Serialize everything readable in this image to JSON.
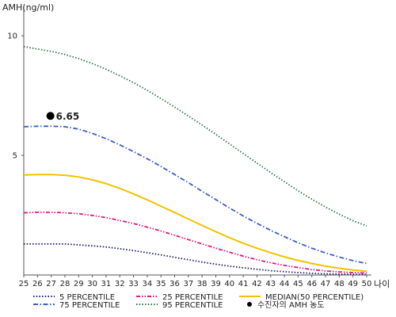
{
  "chart_data": {
    "type": "line",
    "ylabel": "AMH(ng/ml)",
    "xlabel": "나이",
    "x": [
      25,
      26,
      27,
      28,
      29,
      30,
      31,
      32,
      33,
      34,
      35,
      36,
      37,
      38,
      39,
      40,
      41,
      42,
      43,
      44,
      45,
      46,
      47,
      48,
      49,
      50
    ],
    "x_tick_labels": [
      "25",
      "26",
      "27",
      "28",
      "29",
      "30",
      "31",
      "32",
      "33",
      "34",
      "35",
      "36",
      "37",
      "38",
      "39",
      "40",
      "41",
      "42",
      "43",
      "44",
      "45",
      "46",
      "47",
      "48",
      "49",
      "50"
    ],
    "y_tick_labels": [
      "5",
      "10"
    ],
    "y_ticks": [
      5,
      10
    ],
    "xlim": [
      25,
      50
    ],
    "ylim": [
      0,
      11
    ],
    "grid": false,
    "legend_position": "bottom",
    "series": [
      {
        "name": "5 PERCENTILE",
        "color": "#1a1a6e",
        "style": "dotted",
        "values": [
          1.3,
          1.3,
          1.3,
          1.3,
          1.26,
          1.22,
          1.17,
          1.1,
          1.02,
          0.93,
          0.84,
          0.74,
          0.64,
          0.54,
          0.45,
          0.37,
          0.3,
          0.24,
          0.18,
          0.14,
          0.1,
          0.07,
          0.05,
          0.04,
          0.03,
          0.02
        ]
      },
      {
        "name": "75 PERCENTILE",
        "color": "#3b5fc0",
        "style": "dashdot",
        "values": [
          6.2,
          6.22,
          6.22,
          6.2,
          6.1,
          5.92,
          5.7,
          5.44,
          5.16,
          4.86,
          4.54,
          4.2,
          3.86,
          3.5,
          3.15,
          2.8,
          2.47,
          2.16,
          1.87,
          1.6,
          1.35,
          1.12,
          0.92,
          0.75,
          0.6,
          0.48
        ]
      },
      {
        "name": "25 PERCENTILE",
        "color": "#e0197d",
        "style": "dashdotdot",
        "values": [
          2.6,
          2.62,
          2.62,
          2.6,
          2.56,
          2.49,
          2.4,
          2.28,
          2.15,
          2.0,
          1.84,
          1.66,
          1.48,
          1.3,
          1.12,
          0.95,
          0.79,
          0.64,
          0.51,
          0.4,
          0.31,
          0.23,
          0.17,
          0.13,
          0.1,
          0.08
        ]
      },
      {
        "name": "95 PERCENTILE",
        "color": "#2a7a4a",
        "style": "dotted",
        "values": [
          9.55,
          9.45,
          9.35,
          9.22,
          9.05,
          8.84,
          8.6,
          8.33,
          8.04,
          7.72,
          7.38,
          7.02,
          6.65,
          6.27,
          5.88,
          5.48,
          5.08,
          4.68,
          4.28,
          3.9,
          3.52,
          3.17,
          2.84,
          2.54,
          2.27,
          2.05
        ]
      },
      {
        "name": "MEDIAN(50 PERCENTILE)",
        "color": "#f2c200",
        "style": "solid",
        "values": [
          4.18,
          4.2,
          4.2,
          4.17,
          4.1,
          3.98,
          3.82,
          3.62,
          3.39,
          3.14,
          2.88,
          2.61,
          2.34,
          2.07,
          1.81,
          1.56,
          1.33,
          1.12,
          0.93,
          0.76,
          0.61,
          0.48,
          0.37,
          0.28,
          0.21,
          0.16
        ]
      }
    ],
    "patient_point": {
      "name": "수진자의 AMH 농도",
      "x": 27,
      "y": 6.65,
      "label": "6.65",
      "color": "#000000"
    },
    "legend_order": [
      "5 PERCENTILE",
      "25 PERCENTILE",
      "MEDIAN(50 PERCENTILE)",
      "75 PERCENTILE",
      "95 PERCENTILE",
      "수진자의 AMH 농도"
    ]
  }
}
